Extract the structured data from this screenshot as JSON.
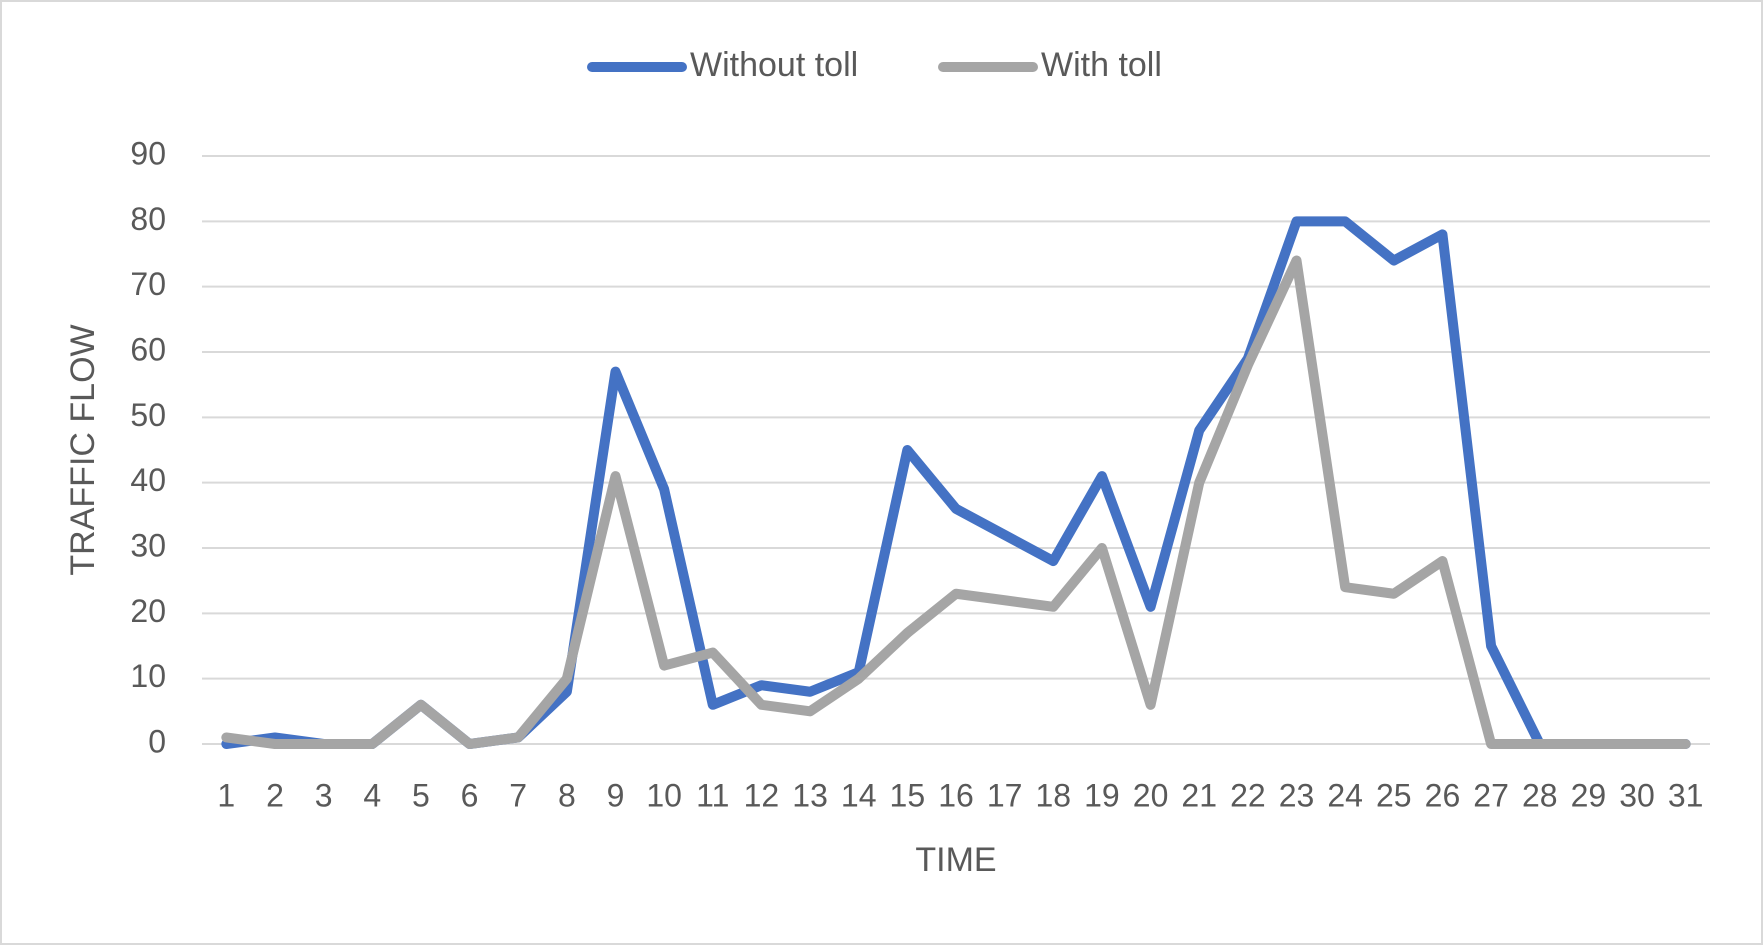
{
  "chart_data": {
    "type": "line",
    "x_label": "TIME",
    "y_label": "TRAFFIC FLOW",
    "categories": [
      "1",
      "2",
      "3",
      "4",
      "5",
      "6",
      "7",
      "8",
      "9",
      "10",
      "11",
      "12",
      "13",
      "14",
      "15",
      "16",
      "17",
      "18",
      "19",
      "20",
      "21",
      "22",
      "23",
      "24",
      "25",
      "26",
      "27",
      "28",
      "29",
      "30",
      "31"
    ],
    "series": [
      {
        "name": "Without toll",
        "color": "#4472c4",
        "values": [
          0,
          1,
          0,
          0,
          6,
          0,
          1,
          8,
          57,
          39,
          6,
          9,
          8,
          11,
          45,
          36,
          32,
          28,
          41,
          21,
          48,
          59,
          80,
          80,
          74,
          78,
          15,
          0,
          0,
          0,
          0
        ]
      },
      {
        "name": "With toll",
        "color": "#a5a5a5",
        "values": [
          1,
          0,
          0,
          0,
          6,
          0,
          1,
          10,
          41,
          12,
          14,
          6,
          5,
          10,
          17,
          23,
          22,
          21,
          30,
          6,
          40,
          58,
          74,
          24,
          23,
          28,
          0,
          0,
          0,
          0,
          0
        ]
      }
    ],
    "ylim": [
      0,
      90
    ],
    "yticks": [
      0,
      10,
      20,
      30,
      40,
      50,
      60,
      70,
      80,
      90
    ],
    "grid": true,
    "legend": "top"
  }
}
